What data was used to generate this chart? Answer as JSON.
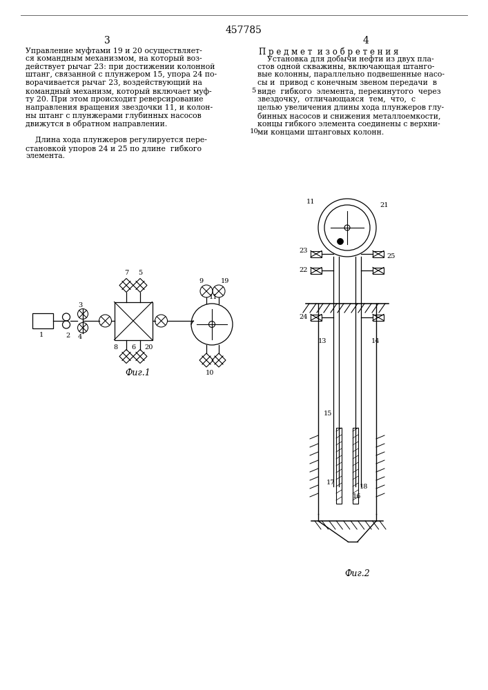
{
  "patent_number": "457785",
  "page_left": "3",
  "page_right": "4",
  "fig1_label": "Фиг.1",
  "fig2_label": "Фиг.2",
  "bg_color": "#ffffff",
  "text_color": "#000000",
  "left_lines": [
    "Управление муфтами 19 и 20 осуществляет-",
    "ся командным механизмом, на который воз-",
    "действует рычаг 23: при достижении колонной",
    "штанг, связанной с плунжером 15, упора 24 по-",
    "ворачивается рычаг 23, воздействующий на",
    "командный механизм, который включает муф-",
    "ту 20. При этом происходит реверсирование",
    "направления вращения звездочки 11, и колон-",
    "ны штанг с плунжерами глубинных насосов",
    "движутся в обратном направлении.",
    "",
    "    Длина хода плунжеров регулируется пере-",
    "становкой упоров 24 и 25 по длине  гибкого",
    "элемента."
  ],
  "right_title": "П р е д м е т  и з о б р е т е н и я",
  "right_lines": [
    "    Установка для добычи нефти из двух пла-",
    "стов одной скважины, включающая штанго-",
    "вые колонны, параллельно подвешенные насо-",
    "сы и  привод с конечным звеном передачи  в",
    "виде  гибкого  элемента, перекинутого  через",
    "звездочку,  отличающаяся  тем,  что,  с",
    "целью увеличения длины хода плунжеров глу-",
    "бинных насосов и снижения металлоемкости,",
    "концы гибкого элемента соединены с верхни-",
    "ми концами штанговых колонн."
  ],
  "line_num_5_idx": 4,
  "line_num_10_idx": 9
}
